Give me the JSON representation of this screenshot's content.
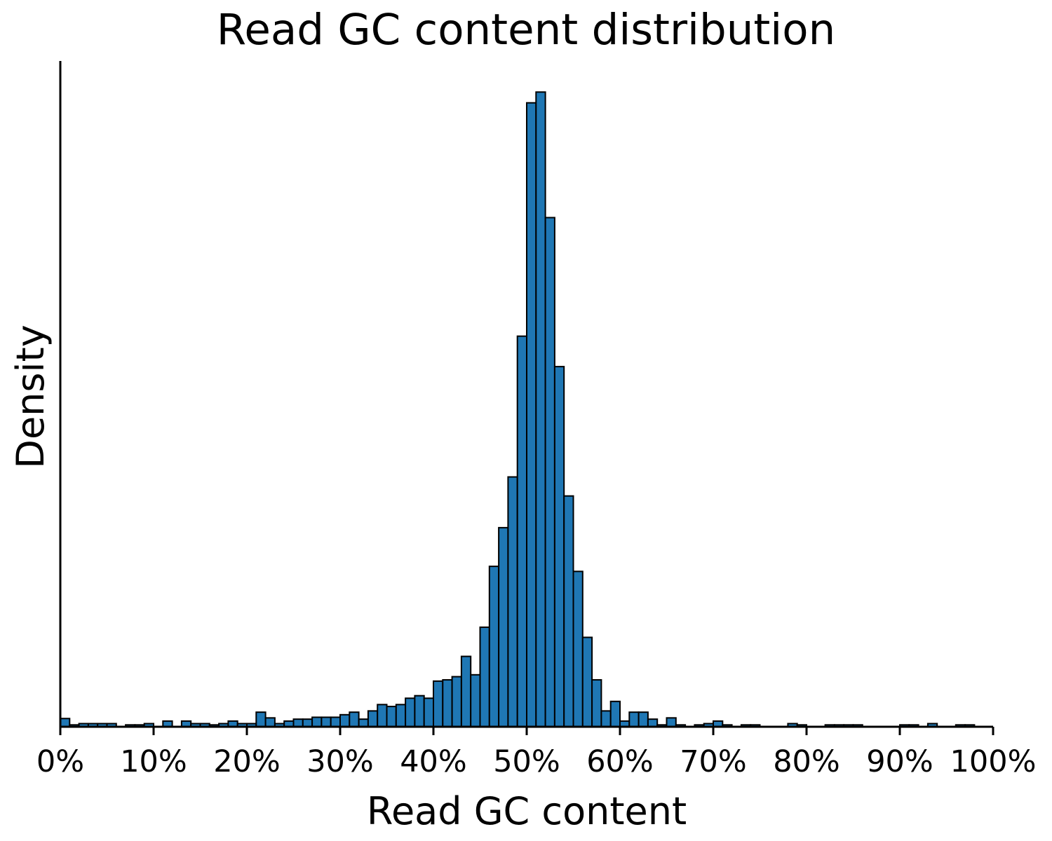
{
  "chart_data": {
    "type": "bar",
    "title": "Read GC content distribution",
    "xlabel": "Read GC content",
    "ylabel": "Density",
    "xlim": [
      0,
      100
    ],
    "ylim": [
      0,
      1.05
    ],
    "y_ticks_shown": false,
    "grid": false,
    "bin_width": 1,
    "bar_color": "#1f77b4",
    "edge_color": "#000000",
    "x_ticks": [
      0,
      10,
      20,
      30,
      40,
      50,
      60,
      70,
      80,
      90,
      100
    ],
    "x_tick_labels": [
      "0%",
      "10%",
      "20%",
      "30%",
      "40%",
      "50%",
      "60%",
      "70%",
      "80%",
      "90%",
      "100%"
    ],
    "values": [
      0.013,
      0.003,
      0.005,
      0.005,
      0.005,
      0.005,
      0.0,
      0.003,
      0.003,
      0.005,
      0.0,
      0.009,
      0.0,
      0.009,
      0.005,
      0.005,
      0.003,
      0.005,
      0.009,
      0.005,
      0.005,
      0.023,
      0.014,
      0.005,
      0.009,
      0.012,
      0.012,
      0.015,
      0.015,
      0.015,
      0.019,
      0.023,
      0.012,
      0.025,
      0.035,
      0.032,
      0.035,
      0.045,
      0.049,
      0.045,
      0.072,
      0.074,
      0.079,
      0.111,
      0.082,
      0.157,
      0.253,
      0.314,
      0.394,
      0.616,
      0.984,
      1.001,
      0.803,
      0.568,
      0.364,
      0.245,
      0.141,
      0.074,
      0.025,
      0.04,
      0.009,
      0.023,
      0.023,
      0.012,
      0.003,
      0.014,
      0.003,
      0.0,
      0.003,
      0.005,
      0.009,
      0.003,
      0.0,
      0.003,
      0.003,
      0.0,
      0.0,
      0.0,
      0.005,
      0.003,
      0.0,
      0.0,
      0.003,
      0.003,
      0.003,
      0.003,
      0.0,
      0.0,
      0.0,
      0.0,
      0.003,
      0.003,
      0.0,
      0.005,
      0.0,
      0.0,
      0.003,
      0.003,
      0.0,
      0.0
    ]
  }
}
